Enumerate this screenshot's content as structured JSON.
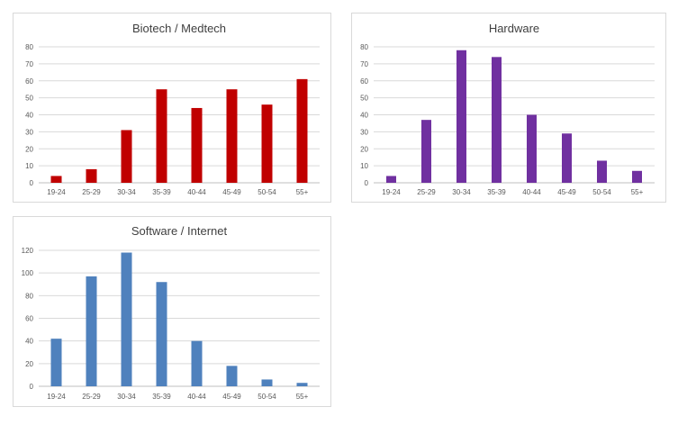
{
  "chart_data": [
    {
      "type": "bar",
      "title": "Biotech / Medtech",
      "categories": [
        "19-24",
        "25-29",
        "30-34",
        "35-39",
        "40-44",
        "45-49",
        "50-54",
        "55+"
      ],
      "values": [
        4,
        8,
        31,
        55,
        44,
        55,
        46,
        61
      ],
      "ylim": [
        0,
        80
      ],
      "yticks": [
        0,
        10,
        20,
        30,
        40,
        50,
        60,
        70,
        80
      ],
      "grid": true,
      "color": "#c00000"
    },
    {
      "type": "bar",
      "title": "Hardware",
      "categories": [
        "19-24",
        "25-29",
        "30-34",
        "35-39",
        "40-44",
        "45-49",
        "50-54",
        "55+"
      ],
      "values": [
        4,
        37,
        78,
        74,
        40,
        29,
        13,
        7
      ],
      "ylim": [
        0,
        80
      ],
      "yticks": [
        0,
        10,
        20,
        30,
        40,
        50,
        60,
        70,
        80
      ],
      "grid": true,
      "color": "#7030a0"
    },
    {
      "type": "bar",
      "title": "Software / Internet",
      "categories": [
        "19-24",
        "25-29",
        "30-34",
        "35-39",
        "40-44",
        "45-49",
        "50-54",
        "55+"
      ],
      "values": [
        42,
        97,
        118,
        92,
        40,
        18,
        6,
        3
      ],
      "ylim": [
        0,
        120
      ],
      "yticks": [
        0,
        20,
        40,
        60,
        80,
        100,
        120
      ],
      "grid": true,
      "color": "#4f81bd"
    }
  ]
}
